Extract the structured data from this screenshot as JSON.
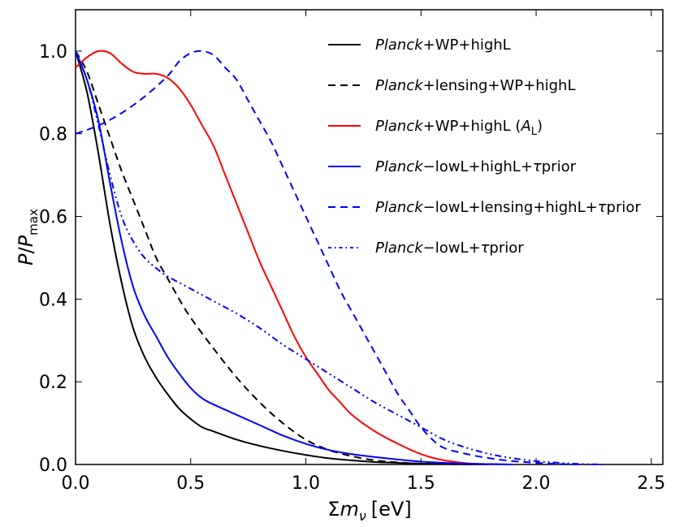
{
  "chart_data": {
    "type": "line",
    "title": "",
    "xlabel": "Σm_ν [eV]",
    "ylabel": "P/P_max",
    "xlabel_parts": {
      "sigma": "Σ",
      "m": "m",
      "nu": "ν",
      "unit": "[eV]"
    },
    "ylabel_parts": {
      "p": "P",
      "slash": "/",
      "pmax": "P",
      "max": "max"
    },
    "xlim": [
      0.0,
      2.55
    ],
    "ylim": [
      0.0,
      1.1
    ],
    "xticks": [
      0.0,
      0.5,
      1.0,
      1.5,
      2.0,
      2.5
    ],
    "xtick_labels": [
      "0.0",
      "0.5",
      "1.0",
      "1.5",
      "2.0",
      "2.5"
    ],
    "yticks": [
      0.0,
      0.2,
      0.4,
      0.6,
      0.8,
      1.0
    ],
    "ytick_labels": [
      "0.0",
      "0.2",
      "0.4",
      "0.6",
      "0.8",
      "1.0"
    ],
    "grid": false,
    "legend_position": "top-right",
    "series": [
      {
        "name": "Planck+WP+highL",
        "legend_italic": "Planck",
        "legend_rest": "+WP+highL",
        "color": "#000000",
        "style": "solid",
        "x": [
          0.0,
          0.05,
          0.1,
          0.15,
          0.2,
          0.25,
          0.3,
          0.35,
          0.4,
          0.45,
          0.5,
          0.55,
          0.6,
          0.7,
          0.8,
          0.9,
          1.0,
          1.1,
          1.2,
          1.3,
          1.4,
          1.5,
          1.6,
          1.7,
          1.8
        ],
        "y": [
          1.0,
          0.9,
          0.75,
          0.58,
          0.44,
          0.33,
          0.26,
          0.21,
          0.17,
          0.135,
          0.11,
          0.09,
          0.08,
          0.06,
          0.045,
          0.033,
          0.023,
          0.015,
          0.01,
          0.006,
          0.004,
          0.002,
          0.001,
          0.0005,
          0.0
        ]
      },
      {
        "name": "Planck+lensing+WP+highL",
        "legend_italic": "Planck",
        "legend_rest": "+lensing+WP+highL",
        "color": "#000000",
        "style": "dashed",
        "x": [
          0.0,
          0.05,
          0.1,
          0.15,
          0.2,
          0.25,
          0.3,
          0.35,
          0.4,
          0.45,
          0.5,
          0.6,
          0.7,
          0.8,
          0.9,
          1.0,
          1.1,
          1.2,
          1.3,
          1.4,
          1.5,
          1.6,
          1.7
        ],
        "y": [
          1.0,
          0.95,
          0.87,
          0.79,
          0.71,
          0.64,
          0.57,
          0.5,
          0.45,
          0.4,
          0.355,
          0.28,
          0.21,
          0.15,
          0.1,
          0.06,
          0.035,
          0.02,
          0.01,
          0.005,
          0.002,
          0.001,
          0.0
        ]
      },
      {
        "name": "Planck+WP+highL (A_L)",
        "legend_italic": "Planck",
        "legend_rest": "+WP+highL (",
        "legend_sym": "A",
        "legend_sub": "L",
        "legend_end": ")",
        "color": "#ff0000",
        "style": "solid",
        "x": [
          0.0,
          0.05,
          0.1,
          0.15,
          0.2,
          0.25,
          0.3,
          0.35,
          0.4,
          0.45,
          0.5,
          0.55,
          0.6,
          0.65,
          0.7,
          0.75,
          0.8,
          0.85,
          0.9,
          0.95,
          1.0,
          1.05,
          1.1,
          1.15,
          1.2,
          1.3,
          1.4,
          1.5,
          1.6,
          1.7,
          1.8
        ],
        "y": [
          0.96,
          0.985,
          1.0,
          0.995,
          0.97,
          0.95,
          0.945,
          0.945,
          0.935,
          0.91,
          0.87,
          0.82,
          0.77,
          0.7,
          0.63,
          0.56,
          0.49,
          0.43,
          0.37,
          0.31,
          0.26,
          0.22,
          0.18,
          0.15,
          0.12,
          0.08,
          0.05,
          0.025,
          0.01,
          0.003,
          0.0
        ]
      },
      {
        "name": "Planck−lowL+highL+τprior",
        "legend_italic": "Planck",
        "legend_rest": "−lowL+highL+",
        "legend_sym": "τ",
        "legend_end": "prior",
        "color": "#0000ff",
        "style": "solid",
        "x": [
          0.0,
          0.05,
          0.1,
          0.15,
          0.2,
          0.25,
          0.3,
          0.35,
          0.4,
          0.45,
          0.5,
          0.55,
          0.6,
          0.7,
          0.8,
          0.9,
          1.0,
          1.1,
          1.2,
          1.3,
          1.4,
          1.5,
          1.6,
          1.7,
          1.8,
          1.9
        ],
        "y": [
          1.0,
          0.93,
          0.83,
          0.68,
          0.54,
          0.43,
          0.36,
          0.31,
          0.26,
          0.22,
          0.185,
          0.16,
          0.145,
          0.12,
          0.095,
          0.07,
          0.05,
          0.035,
          0.025,
          0.018,
          0.012,
          0.007,
          0.004,
          0.002,
          0.001,
          0.0
        ]
      },
      {
        "name": "Planck−lowL+lensing+highL+τprior",
        "legend_italic": "Planck",
        "legend_rest": "−lowL+lensing+highL+",
        "legend_sym": "τ",
        "legend_end": "prior",
        "color": "#0000ff",
        "style": "dashed",
        "x": [
          0.0,
          0.1,
          0.2,
          0.3,
          0.4,
          0.45,
          0.5,
          0.55,
          0.6,
          0.65,
          0.7,
          0.75,
          0.8,
          0.85,
          0.9,
          0.95,
          1.0,
          1.05,
          1.1,
          1.15,
          1.2,
          1.25,
          1.3,
          1.35,
          1.4,
          1.45,
          1.5,
          1.55,
          1.6,
          1.7,
          1.8,
          1.9,
          2.0,
          2.1,
          2.2
        ],
        "y": [
          0.8,
          0.82,
          0.85,
          0.89,
          0.94,
          0.975,
          0.995,
          1.0,
          0.99,
          0.96,
          0.93,
          0.88,
          0.83,
          0.78,
          0.72,
          0.66,
          0.6,
          0.54,
          0.48,
          0.42,
          0.37,
          0.32,
          0.27,
          0.22,
          0.17,
          0.13,
          0.09,
          0.06,
          0.04,
          0.025,
          0.015,
          0.008,
          0.004,
          0.001,
          0.0
        ]
      },
      {
        "name": "Planck−lowL+τprior",
        "legend_italic": "Planck",
        "legend_rest": "−lowL+",
        "legend_sym": "τ",
        "legend_end": "prior",
        "color": "#0000ff",
        "style": "dashdotdot",
        "x": [
          0.0,
          0.05,
          0.1,
          0.15,
          0.2,
          0.25,
          0.3,
          0.35,
          0.4,
          0.5,
          0.6,
          0.7,
          0.8,
          0.9,
          1.0,
          1.1,
          1.2,
          1.3,
          1.4,
          1.5,
          1.6,
          1.7,
          1.8,
          1.9,
          2.0,
          2.1,
          2.2,
          2.3
        ],
        "y": [
          1.0,
          0.93,
          0.82,
          0.7,
          0.6,
          0.54,
          0.5,
          0.475,
          0.455,
          0.425,
          0.395,
          0.365,
          0.33,
          0.29,
          0.255,
          0.22,
          0.185,
          0.15,
          0.12,
          0.09,
          0.06,
          0.04,
          0.025,
          0.015,
          0.008,
          0.004,
          0.001,
          0.0
        ]
      }
    ]
  }
}
